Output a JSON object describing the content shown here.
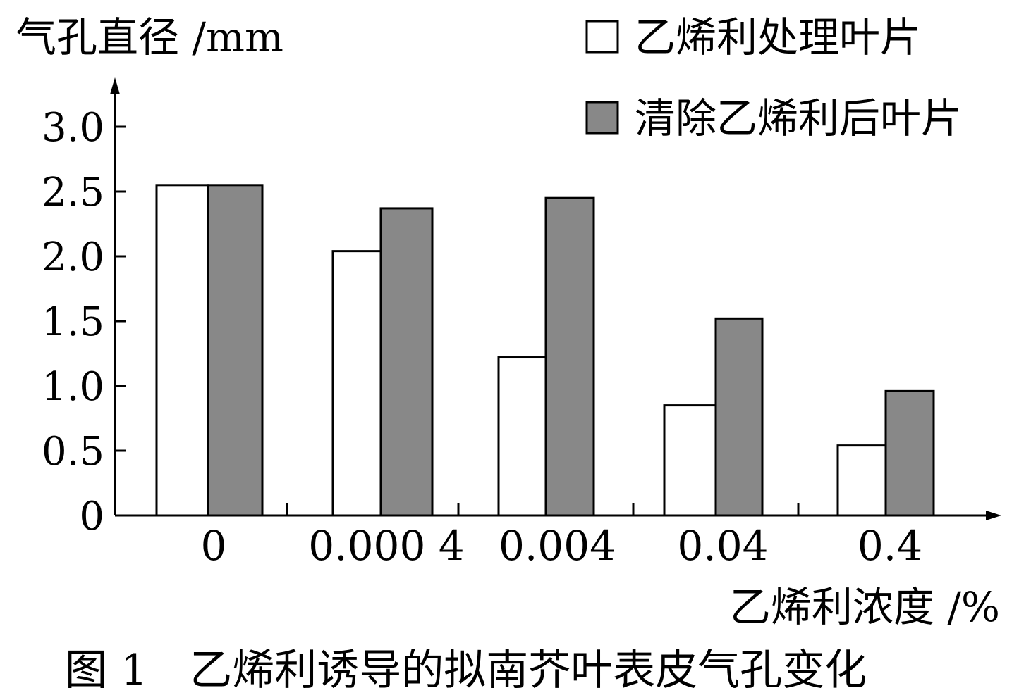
{
  "chart_data": {
    "type": "bar",
    "ylabel": "气孔直径 /mm",
    "xlabel": "乙烯利浓度 /%",
    "caption": "图 1　乙烯利诱导的拟南芥叶表皮气孔变化",
    "categories": [
      "0",
      "0.000 4",
      "0.004",
      "0.04",
      "0.4"
    ],
    "series": [
      {
        "name": "乙烯利处理叶片",
        "values": [
          2.55,
          2.04,
          1.22,
          0.85,
          0.54
        ],
        "color": "#ffffff"
      },
      {
        "name": "清除乙烯利后叶片",
        "values": [
          2.55,
          2.37,
          2.45,
          1.52,
          0.96
        ],
        "color": "#888888"
      }
    ],
    "yticks": [
      "0",
      "0.5",
      "1.0",
      "1.5",
      "2.0",
      "2.5",
      "3.0"
    ],
    "ylim": [
      0,
      3.0
    ],
    "grid": false,
    "legend_position": "top-right"
  }
}
